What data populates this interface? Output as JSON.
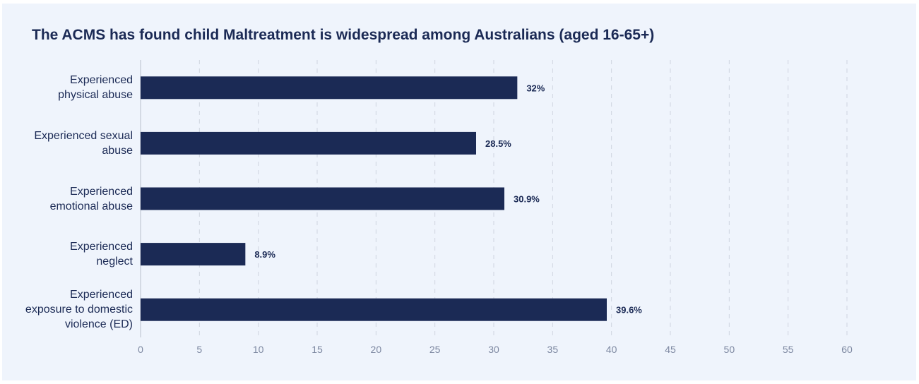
{
  "chart_data": {
    "type": "bar",
    "orientation": "horizontal",
    "title": "The ACMS has found child Maltreatment is widespread among Australians (aged 16-65+)",
    "categories": [
      [
        "Experienced",
        "physical abuse"
      ],
      [
        "Experienced sexual",
        "abuse"
      ],
      [
        "Experienced",
        "emotional abuse"
      ],
      [
        "Experienced",
        "neglect"
      ],
      [
        "Experienced",
        "exposure to domestic",
        "violence (ED)"
      ]
    ],
    "values": [
      32,
      28.5,
      30.9,
      8.9,
      39.6
    ],
    "data_labels": [
      "32%",
      "28.5%",
      "30.9%",
      "8.9%",
      "39.6%"
    ],
    "xlim": [
      0,
      60
    ],
    "xticks": [
      0,
      5,
      10,
      15,
      20,
      25,
      30,
      35,
      40,
      45,
      50,
      55,
      60
    ],
    "grid": "vertical dashed",
    "xlabel": "",
    "ylabel": "",
    "colors": {
      "bar": "#1b2a55",
      "text": "#1b2a55",
      "tick": "#7c87a0",
      "grid": "#cfd5e0"
    }
  }
}
